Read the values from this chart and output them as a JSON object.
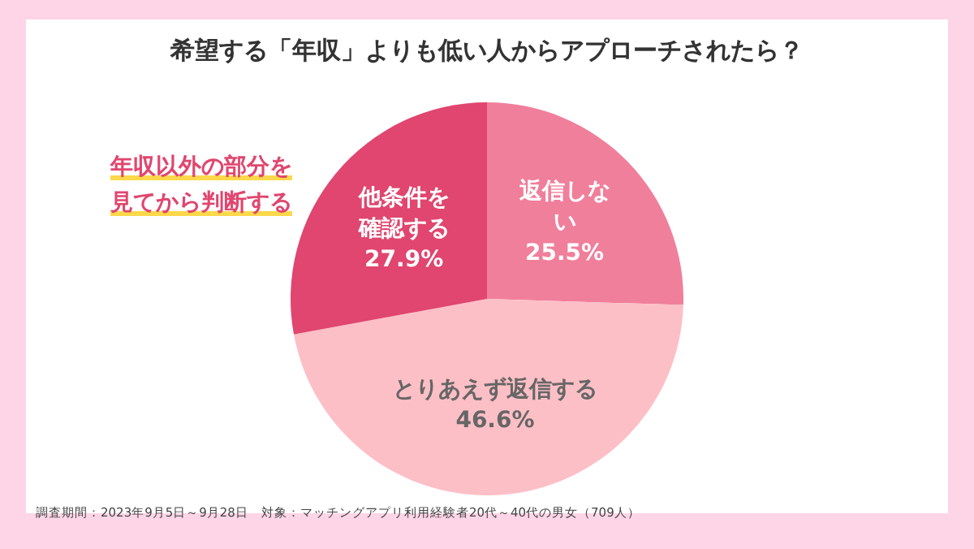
{
  "chart_data": {
    "type": "pie",
    "title": "希望する「年収」よりも低い人からアプローチされたら？",
    "categories": [
      "返信しない",
      "とりあえず返信する",
      "他条件を確認する"
    ],
    "values": [
      25.5,
      46.6,
      27.9
    ],
    "colors": [
      "#f07f9b",
      "#fdbfc6",
      "#e0466f"
    ],
    "value_labels": [
      "25.5%",
      "46.6%",
      "27.9%"
    ],
    "annotations": [
      "年収以外の部分を見てから判断する",
      "調査期間：2023年9月5日～9月28日　対象：マッチングアプリ利用経験者20代～40代の男女（709人）"
    ]
  }
}
